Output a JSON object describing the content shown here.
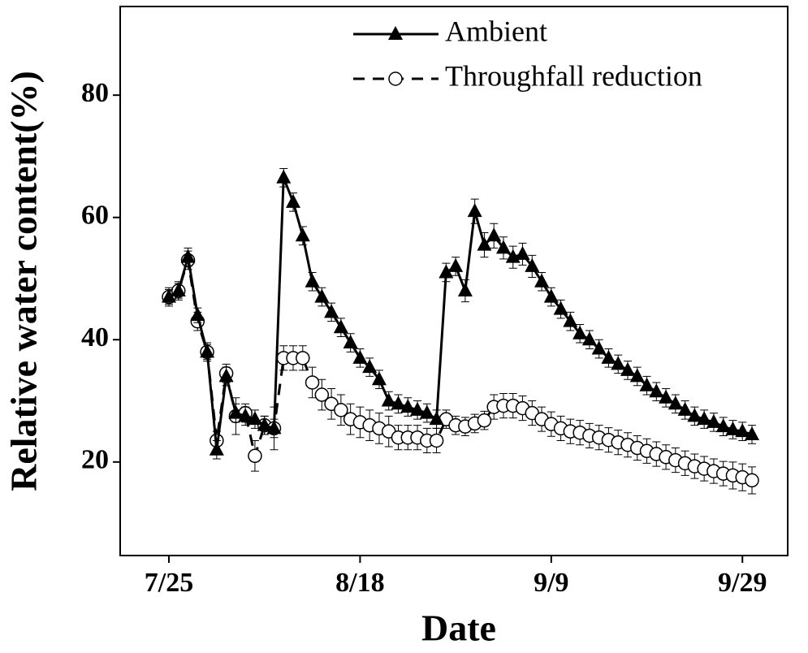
{
  "chart_data": {
    "type": "line",
    "xlabel": "Date",
    "ylabel": "Relative water content(%)",
    "categories": [
      "7/25",
      null,
      null,
      null,
      null,
      null,
      null,
      null,
      null,
      null,
      null,
      null,
      null,
      null,
      null,
      null,
      null,
      null,
      null,
      null,
      "8/18",
      null,
      null,
      null,
      null,
      null,
      null,
      null,
      null,
      null,
      null,
      null,
      null,
      null,
      null,
      null,
      null,
      null,
      null,
      null,
      "9/9",
      null,
      null,
      null,
      null,
      null,
      null,
      null,
      null,
      null,
      null,
      null,
      null,
      null,
      null,
      null,
      null,
      null,
      null,
      null,
      "9/29",
      null
    ],
    "series": [
      {
        "name": "Ambient",
        "color": "#000000",
        "marker": "triangle",
        "dash": false,
        "values": [
          47,
          48,
          53.5,
          44,
          38,
          22,
          34,
          28,
          27.5,
          27,
          26,
          25.5,
          66.5,
          62.5,
          57,
          49.5,
          47,
          44.5,
          42,
          39.5,
          37,
          35.5,
          33.5,
          30,
          29.5,
          29,
          28.5,
          28,
          27,
          51,
          52,
          48,
          61,
          55.5,
          57,
          55,
          53.5,
          54,
          52,
          49.5,
          47,
          45,
          43,
          41,
          40,
          38.5,
          37,
          36,
          35,
          34,
          32.5,
          31.5,
          30.5,
          29.5,
          28.5,
          27.5,
          27,
          26.5,
          25.8,
          25.3,
          25,
          24.5
        ],
        "errors": [
          1.2,
          1.2,
          1.5,
          1.2,
          1.2,
          1.5,
          1.5,
          1.5,
          1.5,
          1.5,
          1.5,
          1.5,
          1.5,
          1.5,
          1.5,
          1.5,
          1.5,
          1.5,
          1.5,
          1.5,
          1.5,
          1.5,
          1.5,
          1.5,
          1.5,
          1.5,
          1.5,
          1.5,
          1.5,
          1.5,
          1.5,
          1.8,
          2,
          2,
          2,
          1.8,
          1.8,
          1.8,
          1.8,
          1.5,
          1.5,
          1.5,
          1.5,
          1.5,
          1.5,
          1.5,
          1.5,
          1.5,
          1.5,
          1.5,
          1.5,
          1.5,
          1.5,
          1.5,
          1.5,
          1.5,
          1.5,
          1.5,
          1.5,
          1.5,
          1.5,
          1.5
        ]
      },
      {
        "name": "Throughfall reduction",
        "color": "#000000",
        "marker": "circle",
        "dash": true,
        "values": [
          47,
          48,
          53,
          43,
          38,
          23.5,
          34.5,
          27.5,
          28,
          21,
          26,
          25.5,
          37,
          37,
          37,
          33,
          31,
          29.5,
          28.5,
          27,
          26.5,
          26,
          25.5,
          25,
          24,
          24,
          24,
          23.5,
          23.5,
          27,
          26,
          25.8,
          26.3,
          26.8,
          29,
          29.2,
          29.2,
          28.8,
          28,
          27,
          26.2,
          25.5,
          25,
          24.8,
          24.3,
          24,
          23.6,
          23.2,
          22.8,
          22.3,
          21.8,
          21.3,
          20.8,
          20.3,
          19.8,
          19.3,
          18.9,
          18.5,
          18.1,
          17.8,
          17.5,
          17
        ],
        "errors": [
          1.5,
          1.5,
          1.5,
          1.5,
          1.5,
          1.5,
          1.5,
          3,
          1.5,
          2.5,
          1.5,
          3.5,
          2,
          2,
          2,
          2.5,
          2.5,
          2.5,
          2.5,
          2.5,
          2.5,
          2.5,
          2.5,
          2.5,
          2,
          2,
          2,
          2,
          2,
          1.5,
          1.5,
          1.5,
          1.5,
          1.5,
          2,
          2,
          2,
          2,
          2,
          2,
          2,
          2,
          2,
          2,
          2,
          2,
          2,
          2,
          2,
          2,
          2,
          2,
          2,
          2,
          2,
          2,
          2,
          2,
          2,
          2.2,
          2.2,
          2.2
        ]
      }
    ],
    "ylim": [
      4.7,
      94.5
    ],
    "yticks": [
      20,
      40,
      60,
      80
    ],
    "legend": "upper right"
  }
}
